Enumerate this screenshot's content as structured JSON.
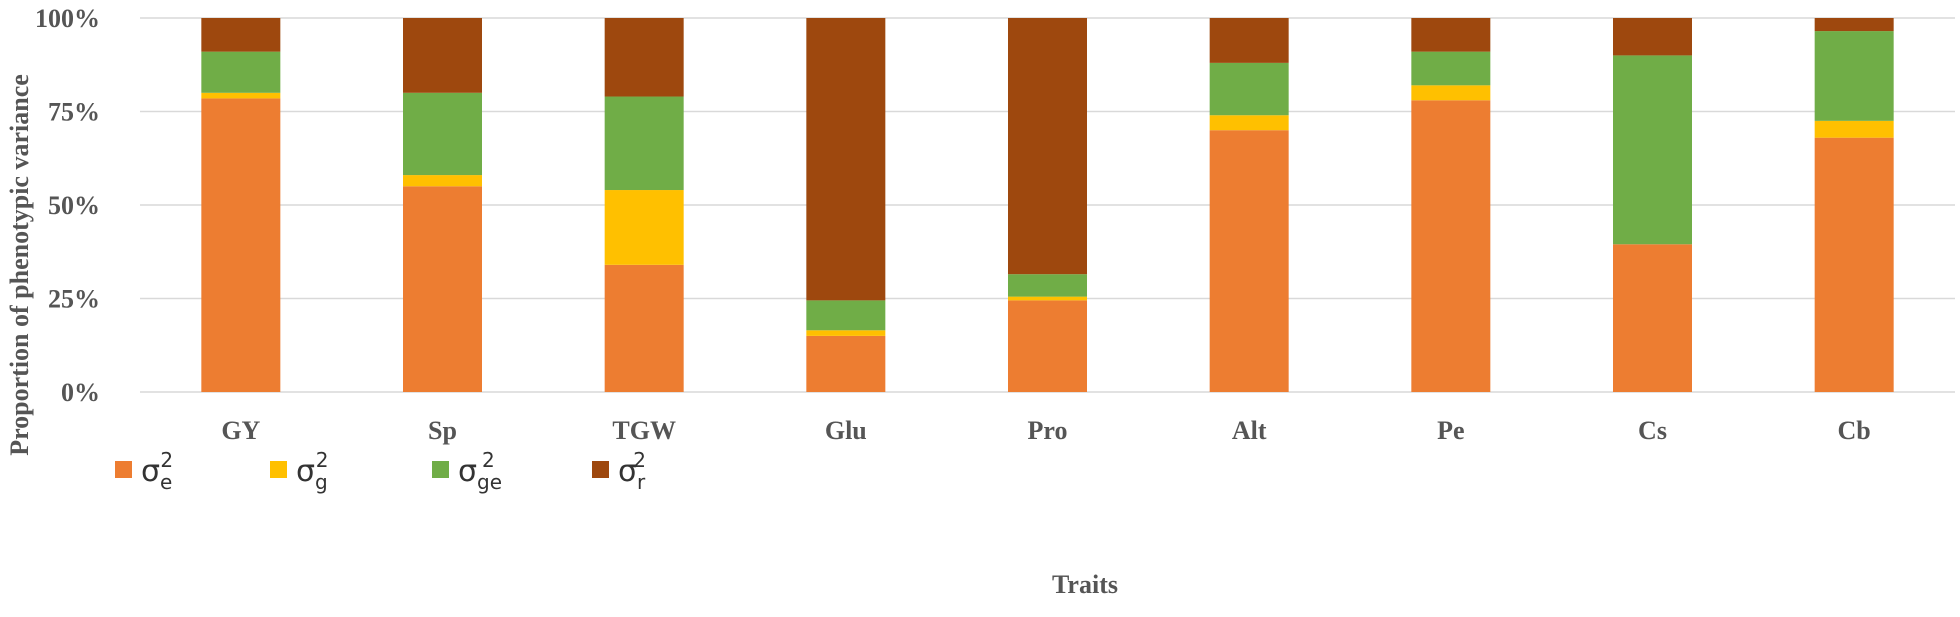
{
  "chart_data": {
    "type": "bar",
    "stacked": true,
    "percent": true,
    "categories": [
      "GY",
      "Sp",
      "TGW",
      "Glu",
      "Pro",
      "Alt",
      "Pe",
      "Cs",
      "Cb"
    ],
    "series": [
      {
        "name": "σe2",
        "sym": "σ",
        "sub": "e",
        "sup": "2",
        "color": "#ED7D31",
        "values": [
          78.5,
          55,
          34,
          15,
          24.5,
          70,
          78,
          39.5,
          68
        ]
      },
      {
        "name": "σg2",
        "sym": "σ",
        "sub": "g",
        "sup": "2",
        "color": "#FFC000",
        "values": [
          1.5,
          3,
          20,
          1.5,
          1,
          4,
          4,
          0,
          4.5
        ]
      },
      {
        "name": "σge2",
        "sym": "σ",
        "sub": "ge",
        "sup": "2",
        "color": "#70AD47",
        "values": [
          11,
          22,
          25,
          8,
          6,
          14,
          9,
          50.5,
          24
        ]
      },
      {
        "name": "σr2",
        "sym": "σ",
        "sub": "r",
        "sup": "2",
        "color": "#9E480E",
        "values": [
          9,
          20,
          21,
          75.5,
          68.5,
          12,
          9,
          10,
          3.5
        ]
      }
    ],
    "yticks": [
      "0%",
      "25%",
      "50%",
      "75%",
      "100%"
    ],
    "ylim": [
      0,
      100
    ],
    "xlabel": "Traits",
    "ylabel": "Proportion of phenotypic variance",
    "grid": true,
    "legend": "bottom-left",
    "colors": {
      "grid": "#D9D9D9",
      "text": "#555555"
    }
  }
}
